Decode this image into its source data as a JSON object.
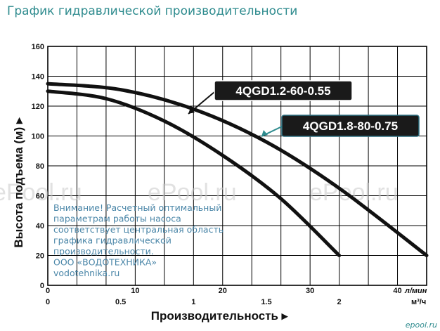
{
  "page": {
    "title": "График гидравлической производительности",
    "notice_lines": [
      "Внимание! Расчетный оптимальный",
      "параметрам работы насоса",
      "соответствует центральная область",
      "графика гидравлической",
      "производительности.",
      "ООО «ВОДОТЕХНИКА»",
      "vodotehnika.ru"
    ],
    "watermark_text": "ePool.ru",
    "brand_text": "epool.ru"
  },
  "chart_data": {
    "type": "line",
    "title": "",
    "ylabel": "Высота подъема (м) ▸",
    "xlabel": "Производительность ▸",
    "ylim": [
      0,
      160
    ],
    "y_ticks": [
      "0",
      "20",
      "40",
      "60",
      "80",
      "100",
      "120",
      "140",
      "160"
    ],
    "x_lpm_unit": "л/мин",
    "x_lpm_ticks": [
      "0",
      "10",
      "20",
      "30",
      "40"
    ],
    "x_m3h_unit": "м³/ч",
    "x_m3h_ticks": [
      "0",
      "0.5",
      "1",
      "1.5",
      "2"
    ],
    "xlim_m3h": [
      0,
      2.6
    ],
    "grid": true,
    "series": [
      {
        "name": "4QGD1.2-60-0.55",
        "x_m3h": [
          0,
          0.4,
          0.8,
          1.2,
          1.6,
          2.0
        ],
        "y": [
          130,
          125,
          110,
          87,
          58,
          20
        ]
      },
      {
        "name": "4QGD1.8-80-0.75",
        "x_m3h": [
          0,
          0.5,
          1.0,
          1.5,
          2.0,
          2.6
        ],
        "y": [
          135,
          131,
          118,
          96,
          65,
          20
        ]
      }
    ],
    "colors": {
      "line": "#111111",
      "label_bg": "#1a1a1a",
      "arrow": "#2e8b8e",
      "grid": "#000000"
    }
  }
}
